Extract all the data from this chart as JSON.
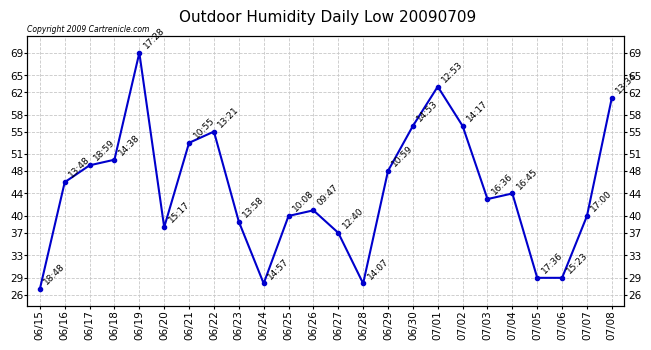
{
  "title": "Outdoor Humidity Daily Low 20090709",
  "copyright": "Copyright 2009 Cartrenicle.com",
  "background_color": "#ffffff",
  "line_color": "#0000cc",
  "grid_color": "#c8c8c8",
  "dates": [
    "06/15",
    "06/16",
    "06/17",
    "06/18",
    "06/19",
    "06/20",
    "06/21",
    "06/22",
    "06/23",
    "06/24",
    "06/25",
    "06/26",
    "06/27",
    "06/28",
    "06/29",
    "06/30",
    "07/01",
    "07/02",
    "07/03",
    "07/04",
    "07/05",
    "07/06",
    "07/07",
    "07/08"
  ],
  "values": [
    27,
    46,
    49,
    50,
    69,
    38,
    53,
    55,
    39,
    28,
    40,
    41,
    37,
    28,
    48,
    56,
    63,
    56,
    43,
    44,
    29,
    29,
    40,
    61
  ],
  "labels": [
    "18:48",
    "13:48",
    "18:59",
    "14:38",
    "17:28",
    "15:17",
    "10:55",
    "13:21",
    "13:58",
    "14:57",
    "10:08",
    "09:47",
    "12:40",
    "14:07",
    "10:59",
    "14:53",
    "12:53",
    "14:17",
    "16:36",
    "16:45",
    "17:36",
    "15:23",
    "17:00",
    "13:34"
  ],
  "ylim": [
    24,
    72
  ],
  "yticks": [
    26,
    29,
    33,
    37,
    40,
    44,
    48,
    51,
    55,
    58,
    62,
    65,
    69
  ],
  "title_fontsize": 11,
  "label_fontsize": 6.5,
  "tick_fontsize": 7.5
}
